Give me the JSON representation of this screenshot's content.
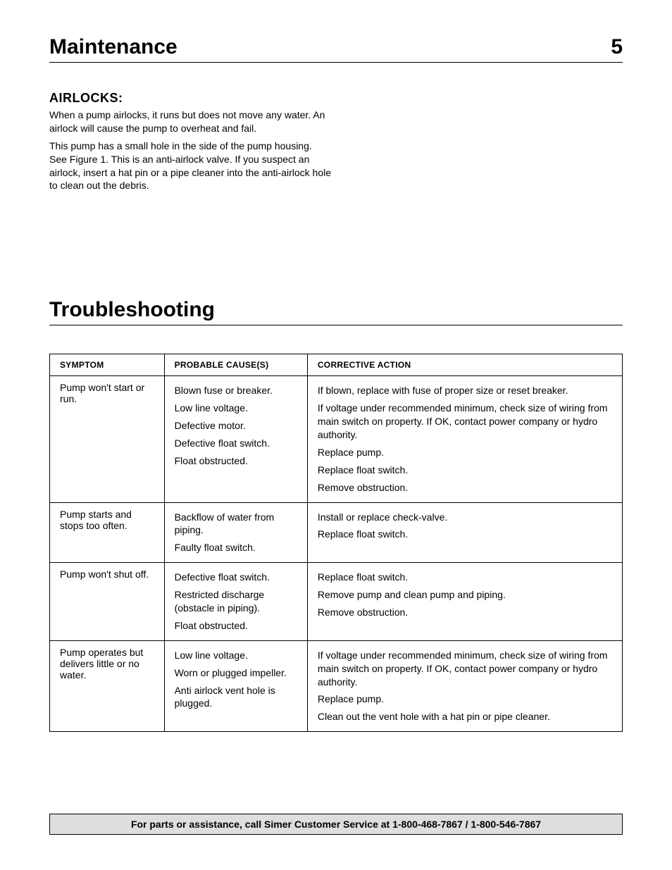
{
  "header": {
    "title": "Maintenance",
    "page_number": "5"
  },
  "airlocks": {
    "heading": "AIRLOCKS:",
    "para1": "When a pump airlocks, it runs but does not move any water. An airlock will cause the pump to overheat and fail.",
    "para2": "This pump has a small hole in the side of the pump housing. See Figure 1. This is an anti-airlock valve. If you suspect an airlock, insert a hat pin or a pipe cleaner into the anti-airlock hole to clean out the debris."
  },
  "troubleshooting": {
    "title": "Troubleshooting",
    "columns": {
      "symptom": "SYMPTOM",
      "cause": "PROBABLE CAUSE(S)",
      "action": "CORRECTIVE ACTION"
    },
    "column_widths_pct": [
      20,
      25,
      55
    ],
    "rows": [
      {
        "symptom": "Pump won't start or run.",
        "items": [
          {
            "cause": "Blown fuse or breaker.",
            "action": "If blown, replace with fuse of proper size or reset breaker."
          },
          {
            "cause": "Low line voltage.",
            "action": "If voltage under recommended minimum, check size of wiring from main switch on property. If OK, contact power company or hydro authority."
          },
          {
            "cause": "Defective motor.",
            "action": "Replace pump."
          },
          {
            "cause": "Defective float switch.",
            "action": "Replace float switch."
          },
          {
            "cause": "Float obstructed.",
            "action": "Remove obstruction."
          }
        ]
      },
      {
        "symptom": "Pump starts and stops too often.",
        "items": [
          {
            "cause": "Backflow of water from piping.",
            "action": "Install or replace check-valve."
          },
          {
            "cause": "Faulty float switch.",
            "action": "Replace float switch."
          }
        ]
      },
      {
        "symptom": "Pump won't shut off.",
        "items": [
          {
            "cause": "Defective float switch.",
            "action": "Replace float switch."
          },
          {
            "cause": "Restricted discharge (obstacle in piping).",
            "action": "Remove pump and clean pump and piping."
          },
          {
            "cause": "Float obstructed.",
            "action": "Remove obstruction."
          }
        ]
      },
      {
        "symptom": "Pump operates but delivers little or no water.",
        "items": [
          {
            "cause": "Low line voltage.",
            "action": "If voltage under recommended minimum, check size of wiring from main switch on property. If OK, contact power company or hydro authority."
          },
          {
            "cause": "Worn or plugged impeller.",
            "action": "Replace pump."
          },
          {
            "cause": "Anti airlock vent hole is plugged.",
            "action": "Clean out the vent hole with a hat pin or pipe cleaner."
          }
        ]
      }
    ]
  },
  "footer": {
    "text_plain": "For parts or assistance, call Simer Customer Service at ",
    "phone": "1-800-468-7867 / 1-800-546-7867"
  },
  "style": {
    "background_color": "#ffffff",
    "text_color": "#000000",
    "border_color": "#000000",
    "footer_bg": "#dedede",
    "heading_fontsize_pt": 30,
    "subheading_fontsize_pt": 18,
    "body_fontsize_pt": 14,
    "table_header_fontsize_pt": 12,
    "font_family": "Myriad Pro / Optima / Segoe UI / Arial"
  }
}
